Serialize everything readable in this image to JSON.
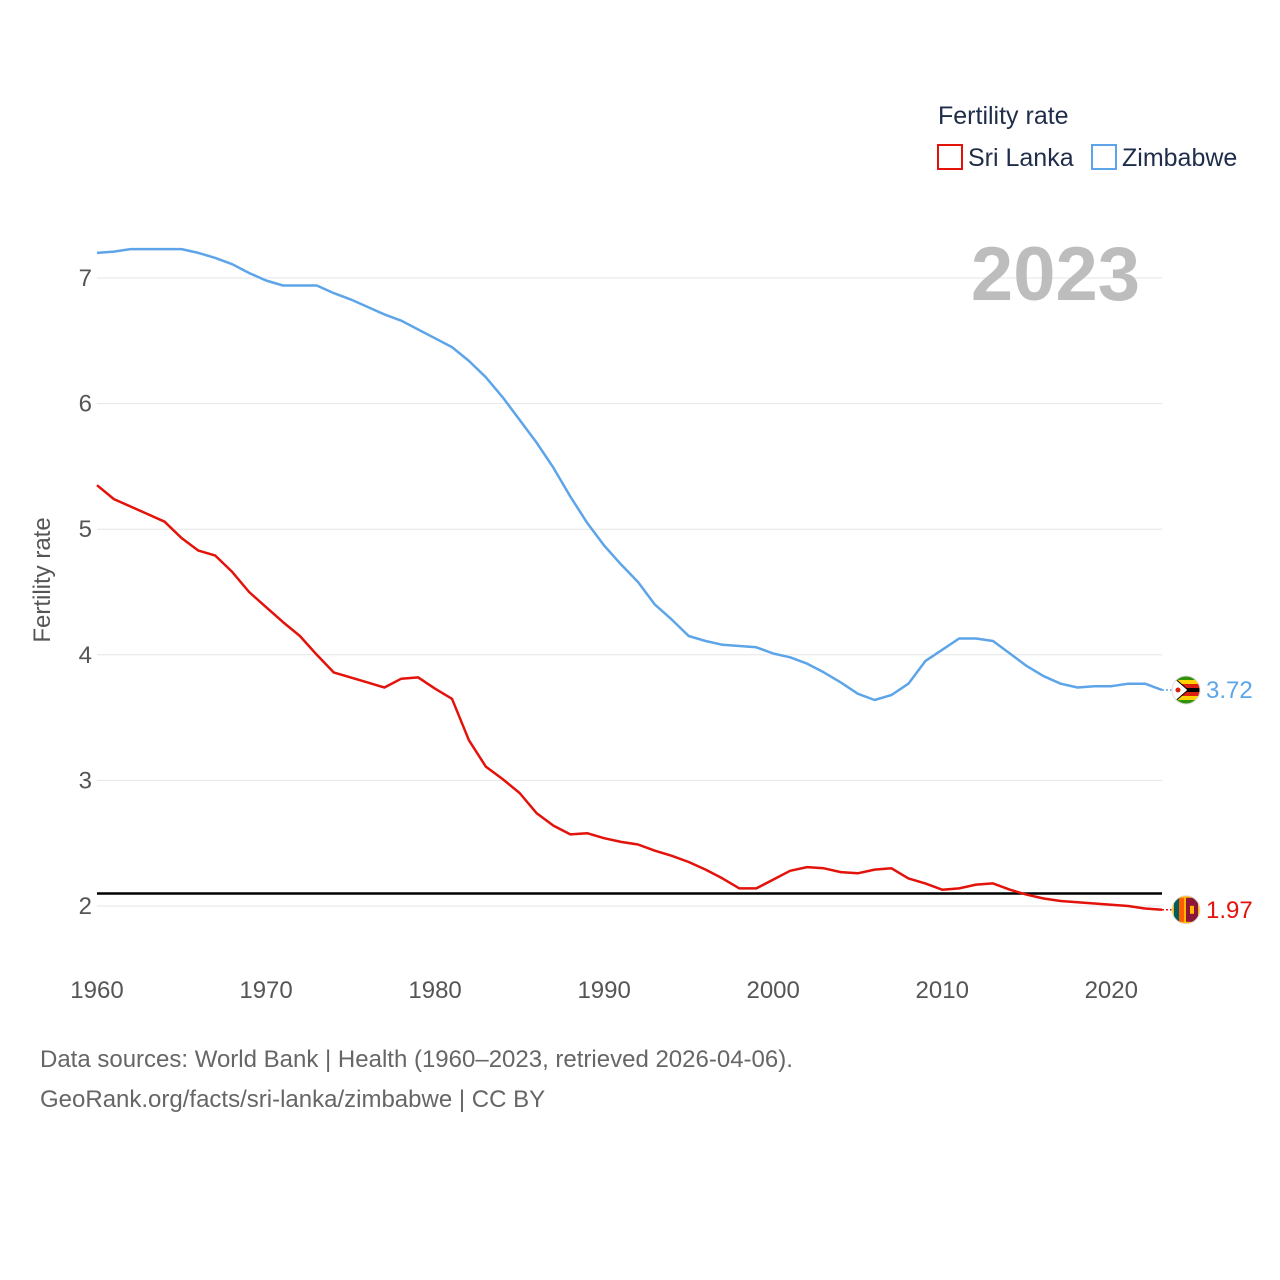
{
  "chart_data": {
    "type": "line",
    "title": "Fertility rate",
    "ylabel": "Fertility rate",
    "xlabel": "",
    "year_display": "2023",
    "xlim": [
      1960,
      2023
    ],
    "ylim": [
      1.6,
      7.4
    ],
    "x_ticks": [
      1960,
      1970,
      1980,
      1990,
      2000,
      2010,
      2020
    ],
    "x_tick_labels": [
      "1960",
      "1970",
      "1980",
      "1990",
      "2000",
      "2010",
      "2020"
    ],
    "y_ticks": [
      2,
      3,
      4,
      5,
      6,
      7
    ],
    "y_tick_labels": [
      "2",
      "3",
      "4",
      "5",
      "6",
      "7"
    ],
    "grid": true,
    "legend_position": "top-right",
    "reference_line": {
      "y": 2.1,
      "color": "#000000"
    },
    "x": [
      1960,
      1961,
      1962,
      1963,
      1964,
      1965,
      1966,
      1967,
      1968,
      1969,
      1970,
      1971,
      1972,
      1973,
      1974,
      1975,
      1976,
      1977,
      1978,
      1979,
      1980,
      1981,
      1982,
      1983,
      1984,
      1985,
      1986,
      1987,
      1988,
      1989,
      1990,
      1991,
      1992,
      1993,
      1994,
      1995,
      1996,
      1997,
      1998,
      1999,
      2000,
      2001,
      2002,
      2003,
      2004,
      2005,
      2006,
      2007,
      2008,
      2009,
      2010,
      2011,
      2012,
      2013,
      2014,
      2015,
      2016,
      2017,
      2018,
      2019,
      2020,
      2021,
      2022,
      2023
    ],
    "series": [
      {
        "name": "Sri Lanka",
        "color": "#e3120b",
        "end_label": "1.97",
        "flag": "sri-lanka-flag-icon",
        "values": [
          5.35,
          5.24,
          5.18,
          5.12,
          5.06,
          4.93,
          4.83,
          4.79,
          4.66,
          4.5,
          4.38,
          4.26,
          4.15,
          4.0,
          3.86,
          3.82,
          3.78,
          3.74,
          3.81,
          3.82,
          3.73,
          3.65,
          3.32,
          3.11,
          3.01,
          2.9,
          2.74,
          2.64,
          2.57,
          2.58,
          2.54,
          2.51,
          2.49,
          2.44,
          2.4,
          2.35,
          2.29,
          2.22,
          2.14,
          2.14,
          2.21,
          2.28,
          2.31,
          2.3,
          2.27,
          2.26,
          2.29,
          2.3,
          2.22,
          2.18,
          2.13,
          2.14,
          2.17,
          2.18,
          2.13,
          2.09,
          2.06,
          2.04,
          2.03,
          2.02,
          2.01,
          2.0,
          1.98,
          1.97
        ]
      },
      {
        "name": "Zimbabwe",
        "color": "#5da5e8",
        "end_label": "3.72",
        "flag": "zimbabwe-flag-icon",
        "values": [
          7.2,
          7.21,
          7.23,
          7.23,
          7.23,
          7.23,
          7.2,
          7.16,
          7.11,
          7.04,
          6.98,
          6.94,
          6.94,
          6.94,
          6.88,
          6.83,
          6.77,
          6.71,
          6.66,
          6.59,
          6.52,
          6.45,
          6.34,
          6.21,
          6.05,
          5.87,
          5.69,
          5.49,
          5.26,
          5.05,
          4.87,
          4.72,
          4.58,
          4.4,
          4.28,
          4.15,
          4.11,
          4.08,
          4.07,
          4.06,
          4.01,
          3.98,
          3.93,
          3.86,
          3.78,
          3.69,
          3.64,
          3.68,
          3.77,
          3.95,
          4.04,
          4.13,
          4.13,
          4.11,
          4.01,
          3.91,
          3.83,
          3.77,
          3.74,
          3.75,
          3.75,
          3.77,
          3.77,
          3.72
        ]
      }
    ]
  },
  "footer": {
    "line1": "Data sources: World Bank | Health (1960–2023, retrieved 2026-04-06).",
    "line2": "GeoRank.org/facts/sri-lanka/zimbabwe | CC BY"
  }
}
